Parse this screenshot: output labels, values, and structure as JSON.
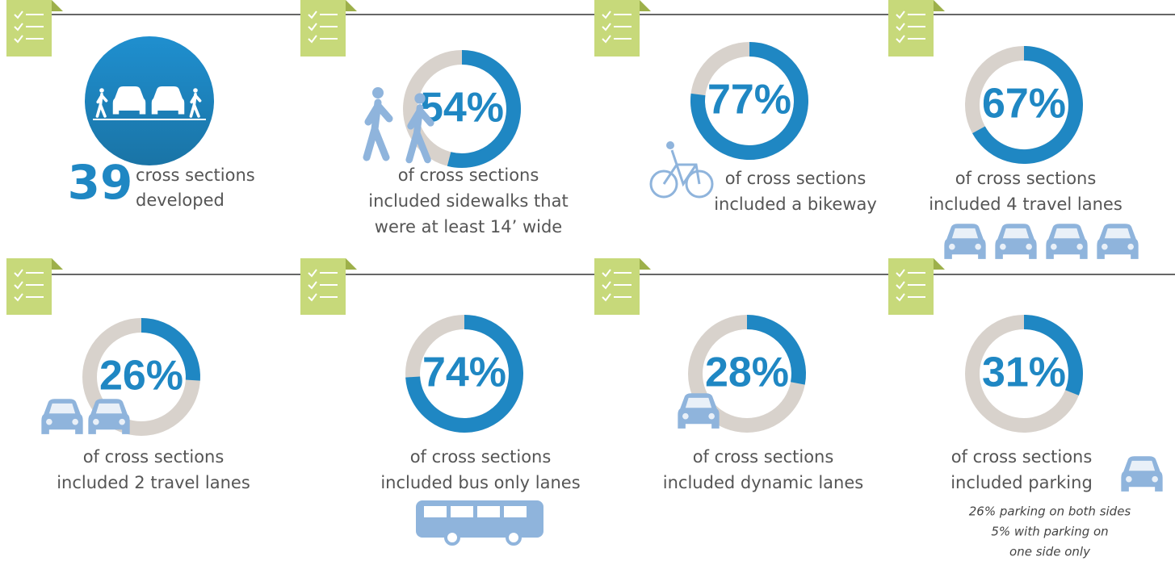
{
  "panels": [
    {
      "number": "39",
      "lines": [
        "cross sections",
        "developed"
      ]
    },
    {
      "value": 54,
      "value_label": "54%",
      "lines": [
        "of cross sections",
        "included sidewalks that",
        "were at least 14’ wide"
      ]
    },
    {
      "value": 77,
      "value_label": "77%",
      "lines": [
        "of cross sections",
        "included a bikeway"
      ]
    },
    {
      "value": 67,
      "value_label": "67%",
      "lines": [
        "of cross sections",
        "included 4 travel lanes"
      ]
    },
    {
      "value": 26,
      "value_label": "26%",
      "lines": [
        "of cross sections",
        "included 2 travel lanes"
      ]
    },
    {
      "value": 74,
      "value_label": "74%",
      "lines": [
        "of cross sections",
        "included bus only lanes"
      ]
    },
    {
      "value": 28,
      "value_label": "28%",
      "lines": [
        "of cross sections",
        "included dynamic lanes"
      ]
    },
    {
      "value": 31,
      "value_label": "31%",
      "lines": [
        "of cross sections",
        "included parking"
      ],
      "notes": [
        "26% parking on both sides",
        "5% with parking on",
        "one side only"
      ]
    }
  ]
}
